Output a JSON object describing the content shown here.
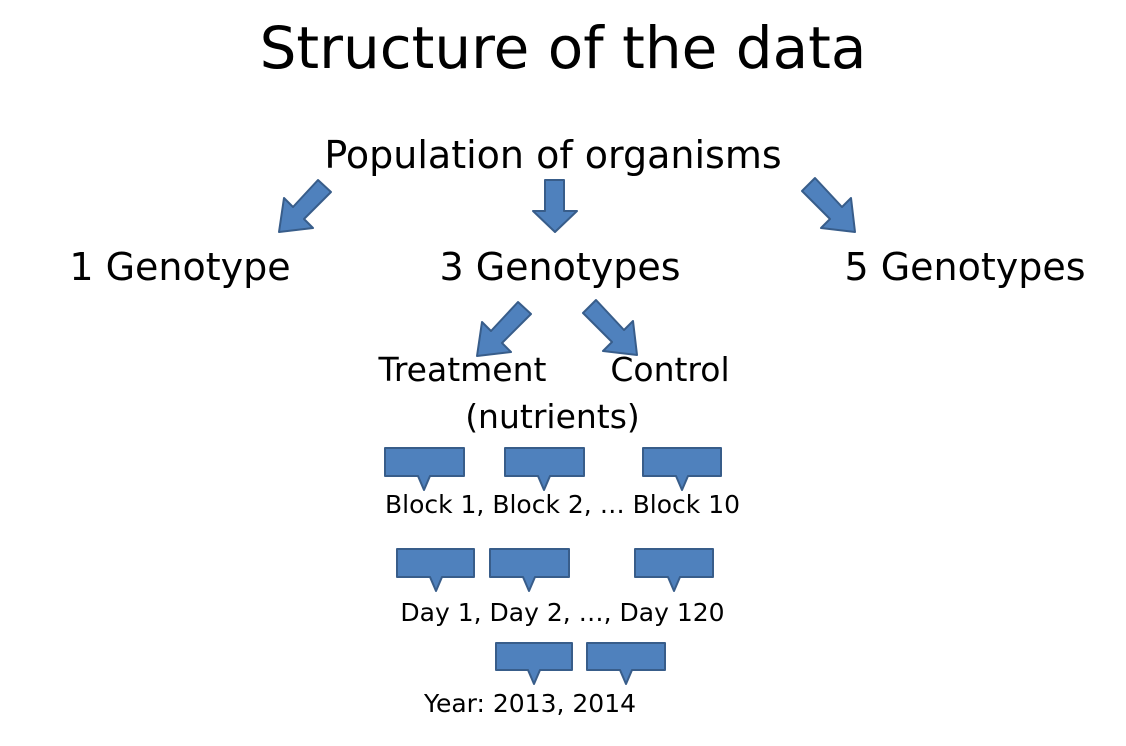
{
  "title": "Structure of the data",
  "root": "Population of organisms",
  "genotypes": [
    "1 Genotype",
    "3 Genotypes",
    "5 Genotypes"
  ],
  "conditions": {
    "treatment": "Treatment",
    "treatment_note": "(nutrients)",
    "control": "Control"
  },
  "blocks": "Block 1, Block 2, … Block 10",
  "days": "Day 1, Day 2, …, Day 120",
  "years": "Year: 2013, 2014",
  "colors": {
    "shape_fill": "#4f81bd",
    "shape_stroke": "#385d8a",
    "text": "#000000"
  }
}
